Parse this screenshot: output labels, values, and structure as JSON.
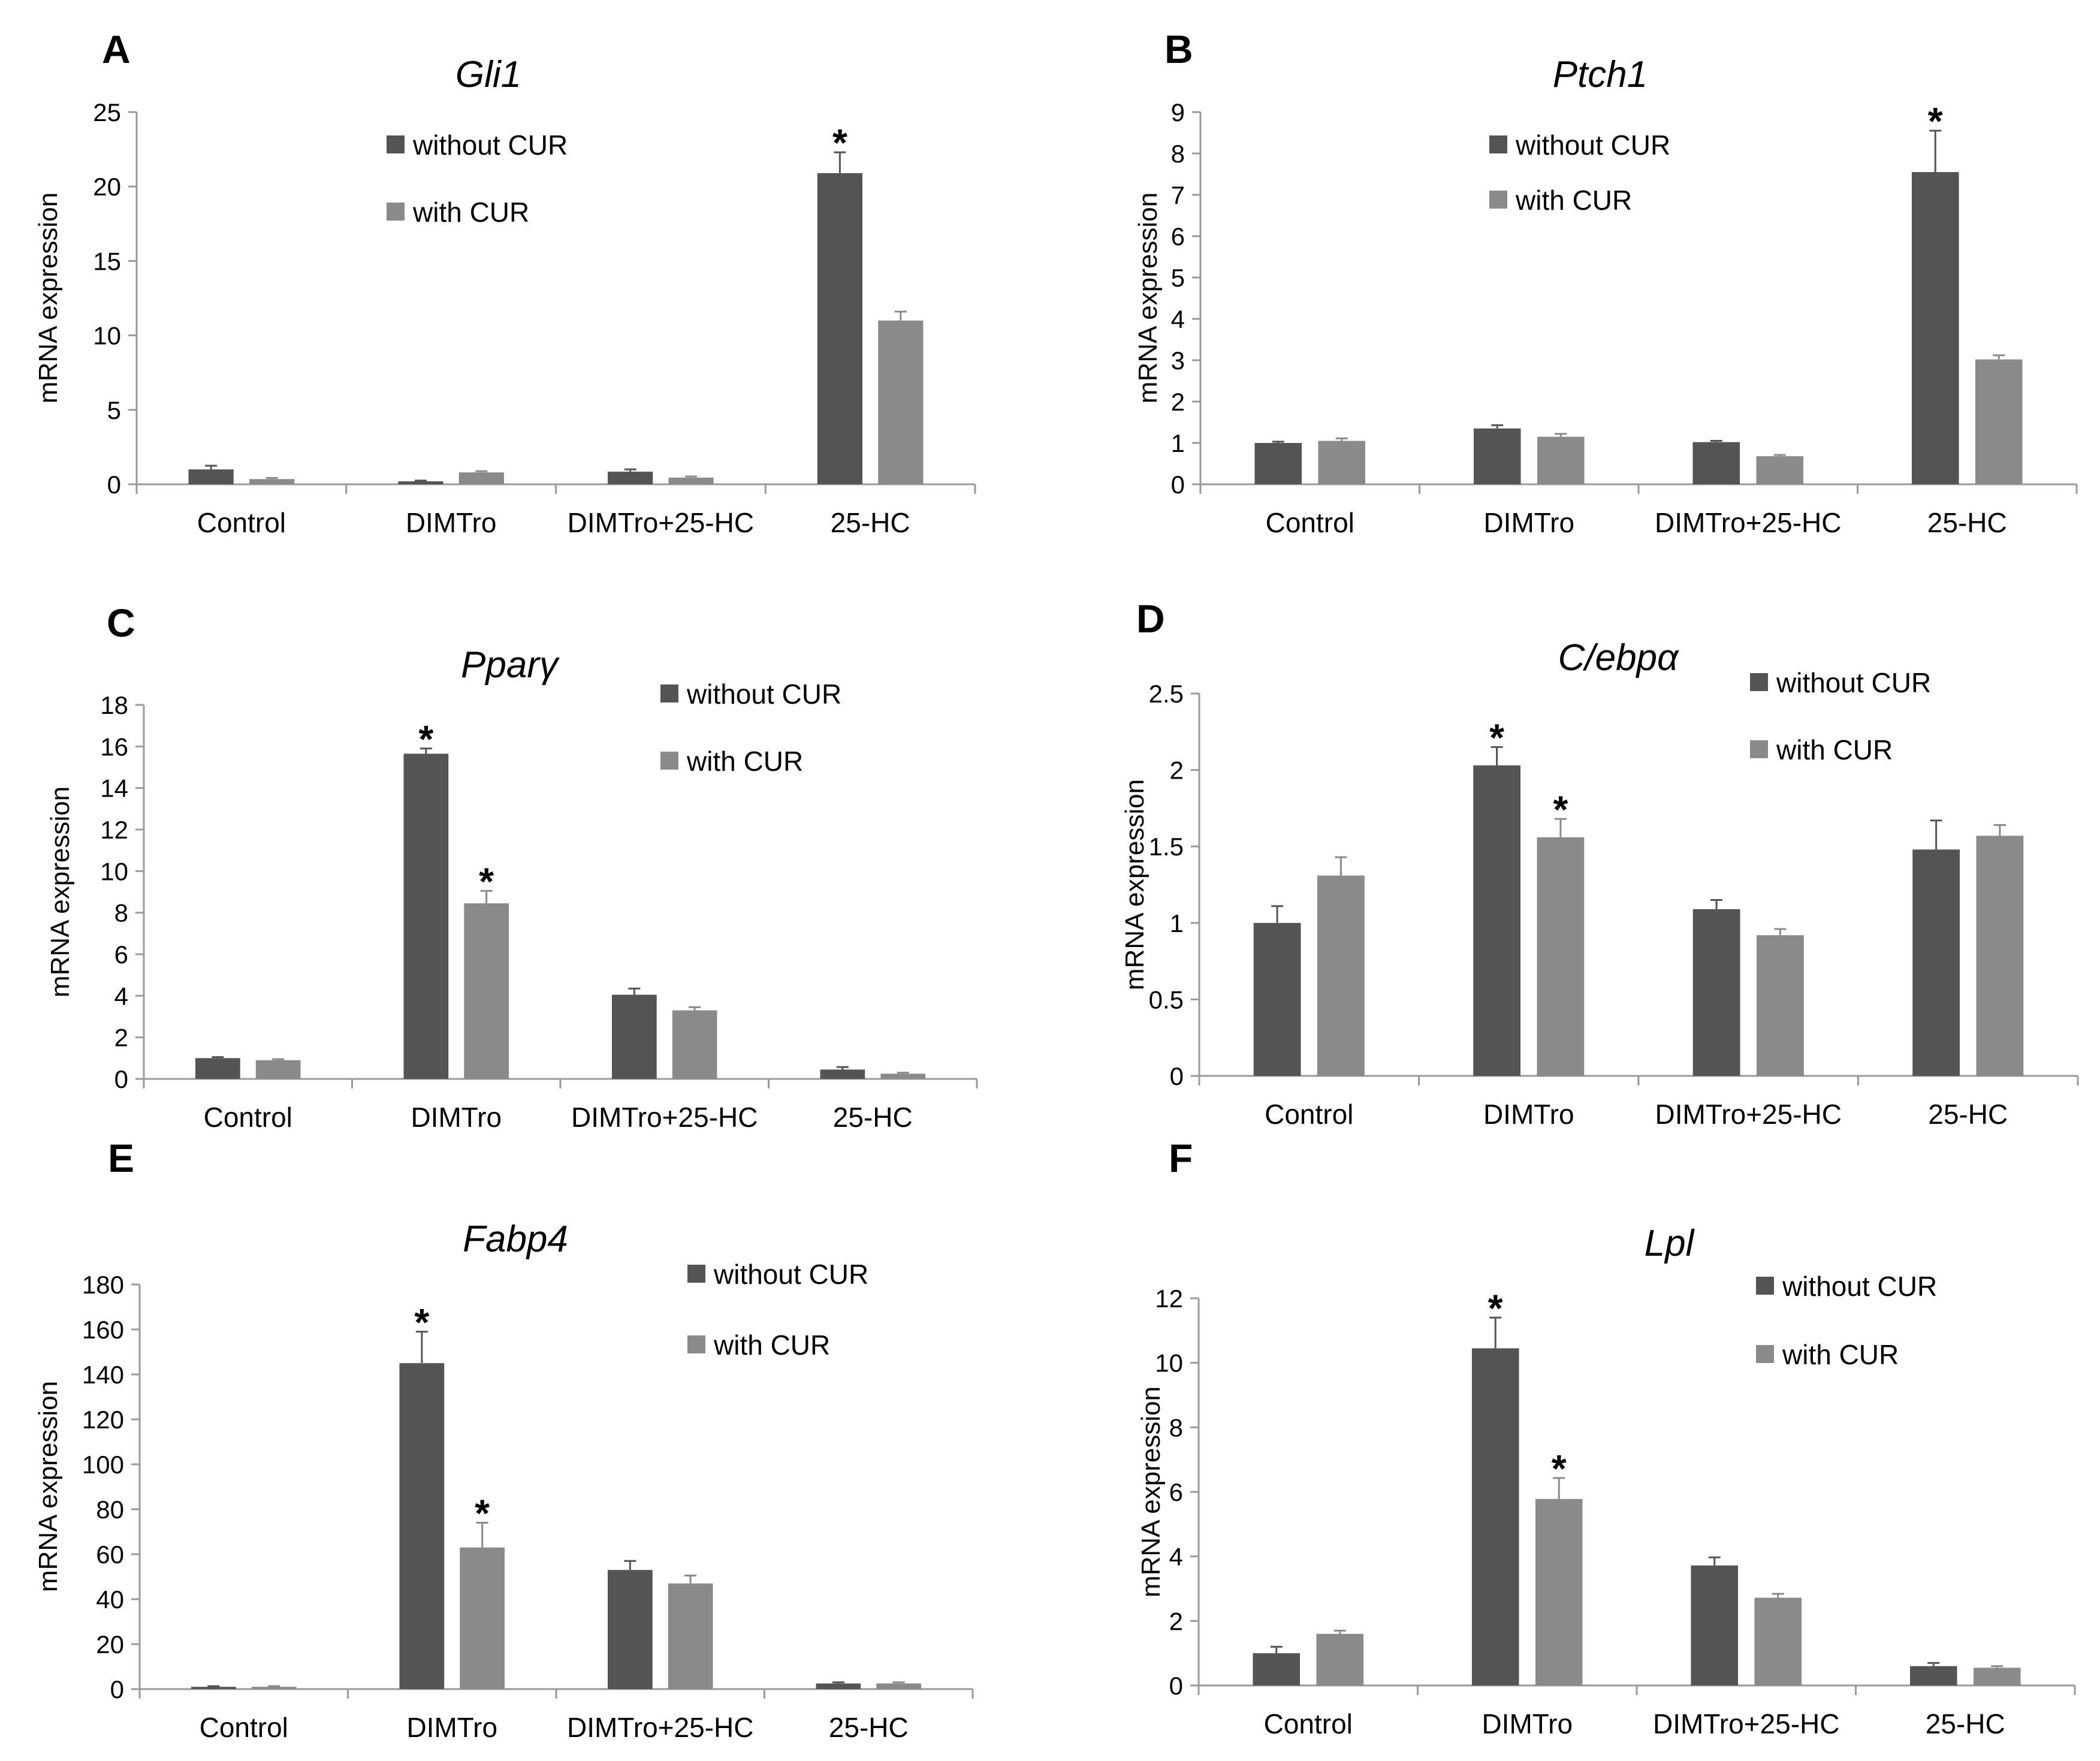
{
  "colors": {
    "without_cur": "#545454",
    "with_cur": "#8a8a8a",
    "axis": "#9a9a9a"
  },
  "chart_data": [
    {
      "type": "bar",
      "panel": "A",
      "title": "Gli1",
      "ylabel": "mRNA expression",
      "xlabel": "",
      "categories": [
        "Control",
        "DIMTro",
        "DIMTro+25-HC",
        "25-HC"
      ],
      "ylim": [
        0,
        25
      ],
      "yticks": [
        0,
        5,
        10,
        15,
        20,
        25
      ],
      "legend_position": "top-center",
      "series": [
        {
          "name": "without CUR",
          "values": [
            1.0,
            0.2,
            0.85,
            20.9
          ],
          "errors": [
            0.25,
            0.05,
            0.15,
            1.4
          ],
          "significant": [
            false,
            false,
            false,
            true
          ]
        },
        {
          "name": "with CUR",
          "values": [
            0.35,
            0.8,
            0.45,
            11.0
          ],
          "errors": [
            0.08,
            0.08,
            0.08,
            0.6
          ],
          "significant": [
            false,
            false,
            false,
            false
          ]
        }
      ]
    },
    {
      "type": "bar",
      "panel": "B",
      "title": "Ptch1",
      "ylabel": "mRNA expression",
      "xlabel": "",
      "categories": [
        "Control",
        "DIMTro",
        "DIMTro+25-HC",
        "25-HC"
      ],
      "ylim": [
        0,
        9
      ],
      "yticks": [
        0,
        1,
        2,
        3,
        4,
        5,
        6,
        7,
        8,
        9
      ],
      "legend_position": "top-center",
      "series": [
        {
          "name": "without CUR",
          "values": [
            1.0,
            1.35,
            1.02,
            7.55
          ],
          "errors": [
            0.03,
            0.08,
            0.03,
            1.0
          ],
          "significant": [
            false,
            false,
            false,
            true
          ]
        },
        {
          "name": "with CUR",
          "values": [
            1.05,
            1.15,
            0.68,
            3.02
          ],
          "errors": [
            0.06,
            0.07,
            0.03,
            0.1
          ],
          "significant": [
            false,
            false,
            false,
            false
          ]
        }
      ]
    },
    {
      "type": "bar",
      "panel": "C",
      "title": "Pparγ",
      "ylabel": "mRNA expression",
      "xlabel": "",
      "categories": [
        "Control",
        "DIMTro",
        "DIMTro+25-HC",
        "25-HC"
      ],
      "ylim": [
        0,
        18
      ],
      "yticks": [
        0,
        2,
        4,
        6,
        8,
        10,
        12,
        14,
        16,
        18
      ],
      "legend_position": "top-right",
      "series": [
        {
          "name": "without CUR",
          "values": [
            1.0,
            15.65,
            4.05,
            0.45
          ],
          "errors": [
            0.05,
            0.25,
            0.3,
            0.12
          ],
          "significant": [
            false,
            true,
            false,
            false
          ]
        },
        {
          "name": "with CUR",
          "values": [
            0.9,
            8.45,
            3.3,
            0.25
          ],
          "errors": [
            0.05,
            0.6,
            0.15,
            0.05
          ],
          "significant": [
            false,
            true,
            false,
            false
          ]
        }
      ]
    },
    {
      "type": "bar",
      "panel": "D",
      "title": "C/ebpα",
      "ylabel": "mRNA expression",
      "xlabel": "",
      "categories": [
        "Control",
        "DIMTro",
        "DIMTro+25-HC",
        "25-HC"
      ],
      "ylim": [
        0,
        2.5
      ],
      "yticks": [
        0,
        0.5,
        1,
        1.5,
        2,
        2.5
      ],
      "ytick_labels": [
        "0",
        "0.5",
        "1",
        "1.5",
        "2",
        "2.5"
      ],
      "legend_position": "top-right",
      "series": [
        {
          "name": "without CUR",
          "values": [
            1.0,
            2.03,
            1.09,
            1.48
          ],
          "errors": [
            0.11,
            0.12,
            0.06,
            0.19
          ],
          "significant": [
            false,
            true,
            false,
            false
          ]
        },
        {
          "name": "with CUR",
          "values": [
            1.31,
            1.56,
            0.92,
            1.57
          ],
          "errors": [
            0.12,
            0.12,
            0.04,
            0.07
          ],
          "significant": [
            false,
            true,
            false,
            false
          ]
        }
      ]
    },
    {
      "type": "bar",
      "panel": "E",
      "title": "Fabp4",
      "ylabel": "mRNA expression",
      "xlabel": "",
      "categories": [
        "Control",
        "DIMTro",
        "DIMTro+25-HC",
        "25-HC"
      ],
      "ylim": [
        0,
        180
      ],
      "yticks": [
        0,
        20,
        40,
        60,
        80,
        100,
        120,
        140,
        160,
        180
      ],
      "legend_position": "top-right",
      "series": [
        {
          "name": "without CUR",
          "values": [
            1.0,
            145,
            53,
            2.5
          ],
          "errors": [
            0.3,
            14,
            4,
            0.5
          ],
          "significant": [
            false,
            true,
            false,
            false
          ]
        },
        {
          "name": "with CUR",
          "values": [
            1.0,
            63,
            47,
            2.5
          ],
          "errors": [
            0.3,
            11,
            3.5,
            0.5
          ],
          "significant": [
            false,
            true,
            false,
            false
          ]
        }
      ]
    },
    {
      "type": "bar",
      "panel": "F",
      "title": "Lpl",
      "ylabel": "mRNA expression",
      "xlabel": "",
      "categories": [
        "Control",
        "DIMTro",
        "DIMTro+25-HC",
        "25-HC"
      ],
      "ylim": [
        0,
        12
      ],
      "yticks": [
        0,
        2,
        4,
        6,
        8,
        10,
        12
      ],
      "legend_position": "top-right",
      "series": [
        {
          "name": "without CUR",
          "values": [
            1.0,
            10.45,
            3.72,
            0.6
          ],
          "errors": [
            0.2,
            0.95,
            0.25,
            0.1
          ],
          "significant": [
            false,
            true,
            false,
            false
          ]
        },
        {
          "name": "with CUR",
          "values": [
            1.6,
            5.78,
            2.72,
            0.55
          ],
          "errors": [
            0.1,
            0.65,
            0.12,
            0.05
          ],
          "significant": [
            false,
            true,
            false,
            false
          ]
        }
      ]
    }
  ]
}
